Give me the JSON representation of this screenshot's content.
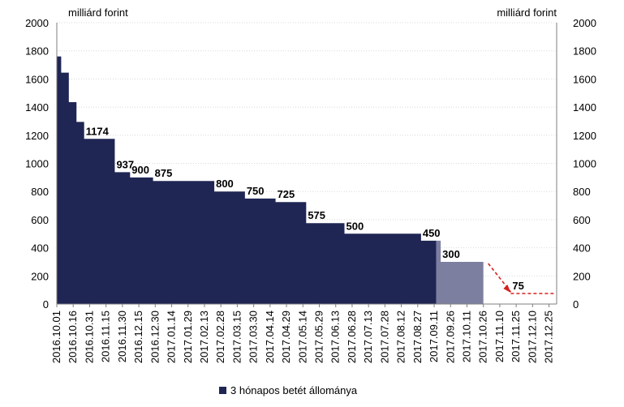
{
  "chart_data": {
    "type": "area",
    "y_unit_left": "milliárd forint",
    "y_unit_right": "milliárd forint",
    "ylim": [
      0,
      2000
    ],
    "y_ticks": [
      "0",
      "200",
      "400",
      "600",
      "800",
      "1000",
      "1200",
      "1400",
      "1600",
      "1800",
      "2000"
    ],
    "grid": true,
    "x_tick_labels": [
      "2016.10.01",
      "2016.10.16",
      "2016.10.31",
      "2016.11.15",
      "2016.11.30",
      "2016.12.15",
      "2016.12.30",
      "2017.01.14",
      "2017.01.29",
      "2017.02.13",
      "2017.02.28",
      "2017.03.15",
      "2017.03.30",
      "2017.04.14",
      "2017.04.29",
      "2017.05.14",
      "2017.05.29",
      "2017.06.13",
      "2017.06.28",
      "2017.07.13",
      "2017.07.28",
      "2017.08.12",
      "2017.08.27",
      "2017.09.11",
      "2017.09.26",
      "2017.10.11",
      "2017.10.26",
      "2017.11.10",
      "2017.11.25",
      "2017.12.10",
      "2017.12.25"
    ],
    "legend": {
      "position": "bottom",
      "label": "3 hónapos betét állománya"
    },
    "colors": {
      "actual": "#1f2654",
      "planned": "#7d7fa0",
      "projection": "#d62020"
    },
    "series_actual": [
      {
        "date": "2016.10.01",
        "value": 1760
      },
      {
        "date": "2016.10.05",
        "value": 1645
      },
      {
        "date": "2016.10.12",
        "value": 1435
      },
      {
        "date": "2016.10.19",
        "value": 1295
      },
      {
        "date": "2016.10.26",
        "value": 1174
      },
      {
        "date": "2016.11.23",
        "value": 937
      },
      {
        "date": "2016.12.07",
        "value": 900
      },
      {
        "date": "2016.12.28",
        "value": 875
      },
      {
        "date": "2017.02.22",
        "value": 800
      },
      {
        "date": "2017.03.22",
        "value": 750
      },
      {
        "date": "2017.04.19",
        "value": 725
      },
      {
        "date": "2017.05.17",
        "value": 575
      },
      {
        "date": "2017.06.21",
        "value": 500
      },
      {
        "date": "2017.08.30",
        "value": 450
      },
      {
        "date": "2017.09.13",
        "value": null
      }
    ],
    "series_planned": [
      {
        "date": "2017.09.13",
        "value": 450
      },
      {
        "date": "2017.09.17",
        "value": 300
      },
      {
        "date": "2017.10.26",
        "value": null
      }
    ],
    "series_projection": [
      {
        "date": "2017.10.26",
        "value": 300
      },
      {
        "date": "2017.11.20",
        "value": 75
      },
      {
        "date": "2017.12.31",
        "value": 75
      }
    ],
    "data_labels": [
      {
        "text": "1174",
        "date": "2016.10.26",
        "value": 1174
      },
      {
        "text": "937",
        "date": "2016.11.23",
        "value": 937
      },
      {
        "text": "900",
        "date": "2016.12.07",
        "value": 900
      },
      {
        "text": "875",
        "date": "2016.12.28",
        "value": 875
      },
      {
        "text": "800",
        "date": "2017.02.22",
        "value": 800
      },
      {
        "text": "750",
        "date": "2017.03.22",
        "value": 750
      },
      {
        "text": "725",
        "date": "2017.04.19",
        "value": 725
      },
      {
        "text": "575",
        "date": "2017.05.17",
        "value": 575
      },
      {
        "text": "500",
        "date": "2017.06.21",
        "value": 500
      },
      {
        "text": "450",
        "date": "2017.08.30",
        "value": 450
      },
      {
        "text": "300",
        "date": "2017.09.17",
        "value": 300
      },
      {
        "text": "75",
        "date": "2017.11.20",
        "value": 75
      }
    ]
  }
}
